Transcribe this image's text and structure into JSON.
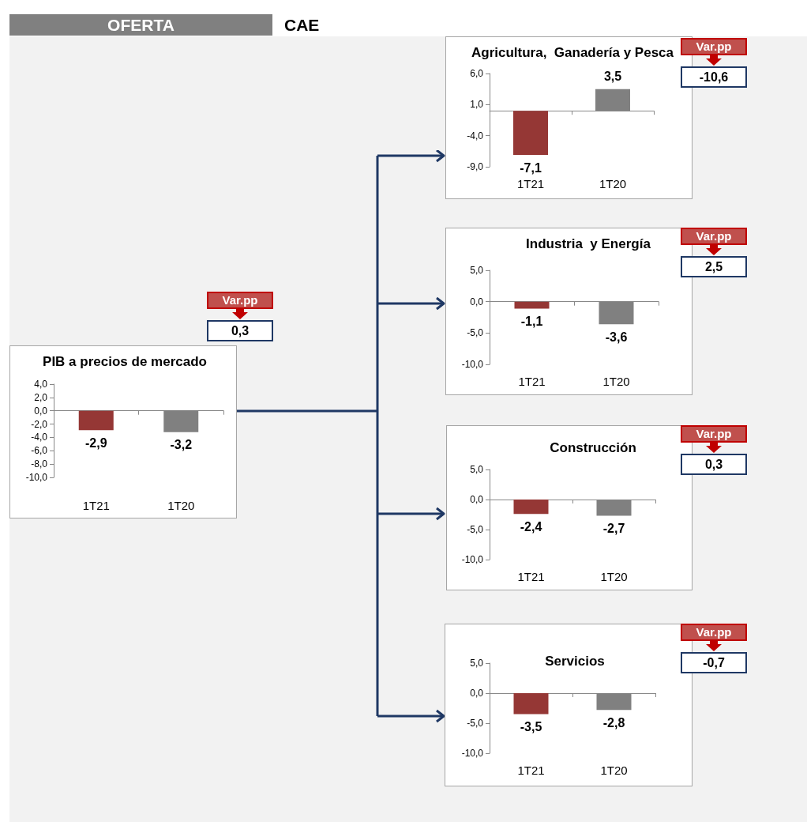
{
  "chart_data": [
    {
      "type": "other",
      "annotations": [
        "OFERTA",
        "CAE"
      ]
    },
    {
      "type": "bar",
      "title": "PIB a precios de mercado",
      "categories": [
        "1T21",
        "1T20"
      ],
      "values": [
        -2.9,
        -3.2
      ],
      "colors": [
        "#953735",
        "#808080"
      ],
      "value_labels": [
        "-2,9",
        "-3,2"
      ],
      "ylim": [
        -10,
        4
      ],
      "yticks": [
        {
          "value": -10,
          "label": "-10,0"
        },
        {
          "value": -8,
          "label": "-8,0"
        },
        {
          "value": -6,
          "label": "-6,0"
        },
        {
          "value": -4,
          "label": "-4,0"
        },
        {
          "value": -2,
          "label": "-2,0"
        },
        {
          "value": 0,
          "label": "0,0"
        },
        {
          "value": 2,
          "label": "2,0"
        },
        {
          "value": 4,
          "label": "4,0"
        }
      ],
      "annotations": [
        "Var.pp",
        "0,3"
      ]
    },
    {
      "type": "bar",
      "title": "Agricultura,  Ganadería y Pesca",
      "categories": [
        "1T21",
        "1T20"
      ],
      "values": [
        -7.1,
        3.5
      ],
      "colors": [
        "#953735",
        "#808080"
      ],
      "value_labels": [
        "-7,1",
        "3,5"
      ],
      "ylim": [
        -9,
        6
      ],
      "yticks": [
        {
          "value": -9,
          "label": "-9,0"
        },
        {
          "value": -4,
          "label": "-4,0"
        },
        {
          "value": 1,
          "label": "1,0"
        },
        {
          "value": 6,
          "label": "6,0"
        }
      ],
      "annotations": [
        "Var.pp",
        "-10,6"
      ]
    },
    {
      "type": "bar",
      "title": "Industria  y Energía",
      "categories": [
        "1T21",
        "1T20"
      ],
      "values": [
        -1.1,
        -3.6
      ],
      "colors": [
        "#953735",
        "#808080"
      ],
      "value_labels": [
        "-1,1",
        "-3,6"
      ],
      "ylim": [
        -10,
        5
      ],
      "yticks": [
        {
          "value": -10,
          "label": "-10,0"
        },
        {
          "value": -5,
          "label": "-5,0"
        },
        {
          "value": 0,
          "label": "0,0"
        },
        {
          "value": 5,
          "label": "5,0"
        }
      ],
      "annotations": [
        "Var.pp",
        "2,5"
      ]
    },
    {
      "type": "bar",
      "title": "Construcción",
      "categories": [
        "1T21",
        "1T20"
      ],
      "values": [
        -2.4,
        -2.7
      ],
      "colors": [
        "#953735",
        "#808080"
      ],
      "value_labels": [
        "-2,4",
        "-2,7"
      ],
      "ylim": [
        -10,
        5
      ],
      "yticks": [
        {
          "value": -10,
          "label": "-10,0"
        },
        {
          "value": -5,
          "label": "-5,0"
        },
        {
          "value": 0,
          "label": "0,0"
        },
        {
          "value": 5,
          "label": "5,0"
        }
      ],
      "annotations": [
        "Var.pp",
        "0,3"
      ]
    },
    {
      "type": "bar",
      "title": "Servicios",
      "categories": [
        "1T21",
        "1T20"
      ],
      "values": [
        -3.5,
        -2.8
      ],
      "colors": [
        "#953735",
        "#808080"
      ],
      "value_labels": [
        "-3,5",
        "-2,8"
      ],
      "ylim": [
        -10,
        5
      ],
      "yticks": [
        {
          "value": -10,
          "label": "-10,0"
        },
        {
          "value": -5,
          "label": "-5,0"
        },
        {
          "value": 0,
          "label": "0,0"
        },
        {
          "value": 5,
          "label": "5,0"
        }
      ],
      "annotations": [
        "Var.pp",
        "-0,7"
      ]
    }
  ]
}
